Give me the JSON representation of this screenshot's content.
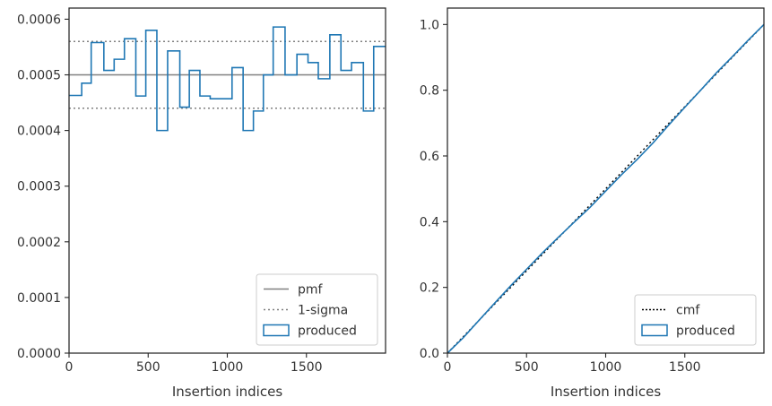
{
  "chart_data": [
    {
      "type": "line",
      "xlabel": "Insertion indices",
      "ylabel": "",
      "xlim": [
        0,
        2000
      ],
      "ylim": [
        0,
        0.00062
      ],
      "xticks": [
        0,
        500,
        1000,
        1500
      ],
      "xtick_labels": [
        "0",
        "500",
        "1000",
        "1500"
      ],
      "yticks": [
        0,
        0.0001,
        0.0002,
        0.0003,
        0.0004,
        0.0005,
        0.0006
      ],
      "ytick_labels": [
        "0.0000",
        "0.0001",
        "0.0002",
        "0.0003",
        "0.0004",
        "0.0005",
        "0.0006"
      ],
      "grid": false,
      "legend_position": "bottom-right",
      "legend": [
        "pmf",
        "1-sigma",
        "produced"
      ],
      "reference_lines": [
        {
          "name": "pmf",
          "y": 0.0005,
          "style": "solid",
          "color": "#808080"
        },
        {
          "name": "1-sigma",
          "y": 0.00044,
          "style": "dotted",
          "color": "#808080"
        },
        {
          "name": "1-sigma",
          "y": 0.00056,
          "style": "dotted",
          "color": "#808080"
        }
      ],
      "series": [
        {
          "name": "produced",
          "style": "step",
          "color": "#1f77b4",
          "bin_edges": [
            0,
            80,
            140,
            220,
            285,
            350,
            422,
            485,
            555,
            623,
            700,
            760,
            827,
            892,
            970,
            1030,
            1100,
            1165,
            1228,
            1290,
            1365,
            1440,
            1510,
            1575,
            1648,
            1718,
            1785,
            1860,
            1925,
            2000
          ],
          "values": [
            0.000463,
            0.000485,
            0.000558,
            0.000508,
            0.000528,
            0.000565,
            0.000462,
            0.00058,
            0.0004,
            0.000543,
            0.000442,
            0.000508,
            0.000462,
            0.000457,
            0.000457,
            0.000513,
            0.0004,
            0.000435,
            0.0005,
            0.000586,
            0.0005,
            0.000537,
            0.000522,
            0.000493,
            0.000572,
            0.000508,
            0.000522,
            0.000435,
            0.000551
          ]
        }
      ]
    },
    {
      "type": "line",
      "xlabel": "Insertion indices",
      "ylabel": "",
      "xlim": [
        0,
        2000
      ],
      "ylim": [
        0,
        1.05
      ],
      "xticks": [
        0,
        500,
        1000,
        1500
      ],
      "xtick_labels": [
        "0",
        "500",
        "1000",
        "1500"
      ],
      "yticks": [
        0,
        0.2,
        0.4,
        0.6,
        0.8,
        1.0
      ],
      "ytick_labels": [
        "0.0",
        "0.2",
        "0.4",
        "0.6",
        "0.8",
        "1.0"
      ],
      "grid": false,
      "legend_position": "bottom-right",
      "legend": [
        "cmf",
        "produced"
      ],
      "series": [
        {
          "name": "cmf",
          "style": "dotted",
          "color": "#000000",
          "x": [
            0,
            2000
          ],
          "y": [
            0,
            1.0
          ]
        },
        {
          "name": "produced",
          "style": "solid",
          "color": "#1f77b4",
          "x": [
            0,
            100,
            200,
            300,
            400,
            500,
            600,
            700,
            800,
            900,
            1000,
            1100,
            1200,
            1300,
            1400,
            1500,
            1600,
            1700,
            1800,
            1900,
            2000
          ],
          "y": [
            0,
            0.047,
            0.1,
            0.153,
            0.205,
            0.255,
            0.305,
            0.352,
            0.398,
            0.443,
            0.493,
            0.543,
            0.59,
            0.64,
            0.695,
            0.748,
            0.8,
            0.853,
            0.902,
            0.952,
            1.0
          ]
        }
      ]
    }
  ]
}
